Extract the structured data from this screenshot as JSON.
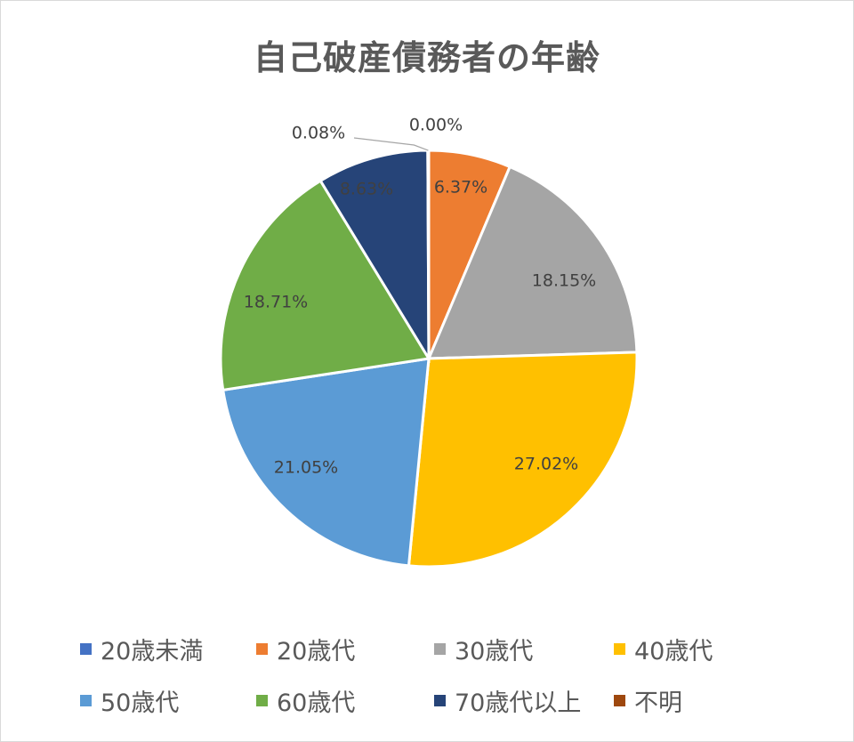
{
  "chart_data": {
    "type": "pie",
    "title": "自己破産債務者の年齢",
    "legend_position": "bottom",
    "slices": [
      {
        "name": "20歳未満",
        "value": 0.0,
        "label": "0.00%",
        "color": "#4472C4"
      },
      {
        "name": "20歳代",
        "value": 6.37,
        "label": "6.37%",
        "color": "#ED7D31"
      },
      {
        "name": "30歳代",
        "value": 18.15,
        "label": "18.15%",
        "color": "#A5A5A5"
      },
      {
        "name": "40歳代",
        "value": 27.02,
        "label": "27.02%",
        "color": "#FFC000"
      },
      {
        "name": "50歳代",
        "value": 21.05,
        "label": "21.05%",
        "color": "#5B9BD5"
      },
      {
        "name": "60歳代",
        "value": 18.71,
        "label": "18.71%",
        "color": "#70AD47"
      },
      {
        "name": "70歳代以上",
        "value": 8.63,
        "label": "8.63%",
        "color": "#264478"
      },
      {
        "name": "不明",
        "value": 0.08,
        "label": "0.08%",
        "color": "#9E480E"
      }
    ]
  }
}
